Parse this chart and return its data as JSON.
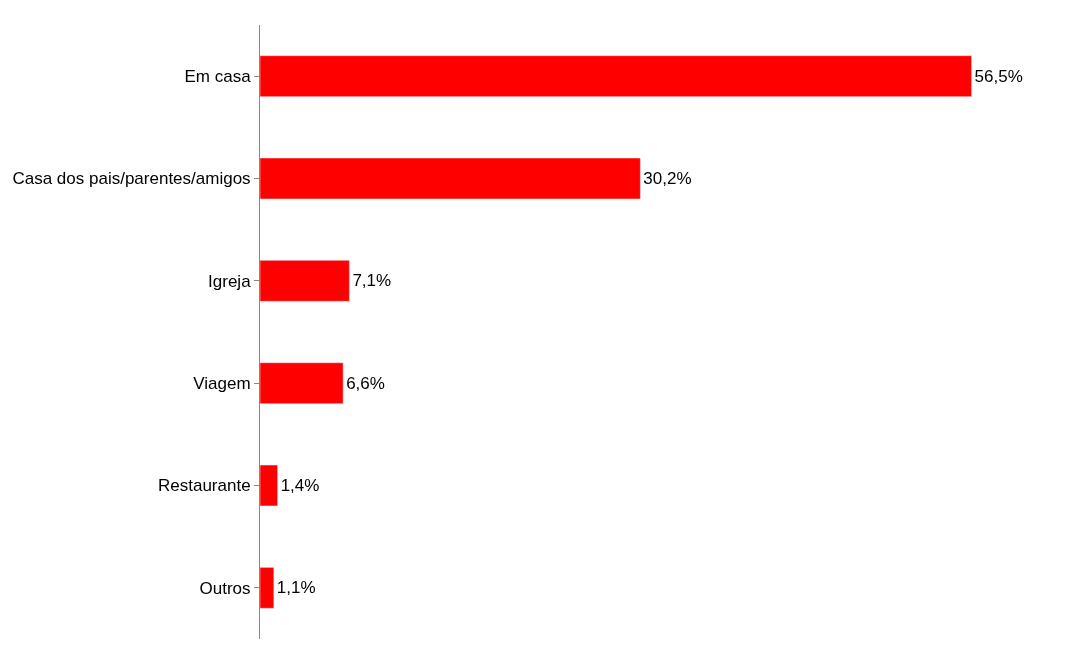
{
  "chart_data": {
    "type": "bar",
    "orientation": "horizontal",
    "categories": [
      "Em casa",
      "Casa dos pais/parentes/amigos",
      "Igreja",
      "Viagem",
      "Restaurante",
      "Outros"
    ],
    "values": [
      56.5,
      30.2,
      7.1,
      6.6,
      1.4,
      1.1
    ],
    "value_labels": [
      "56,5%",
      "30,2%",
      "7,1%",
      "6,6%",
      "1,4%",
      "1,1%"
    ],
    "color": "#ff0000",
    "legend": false
  }
}
